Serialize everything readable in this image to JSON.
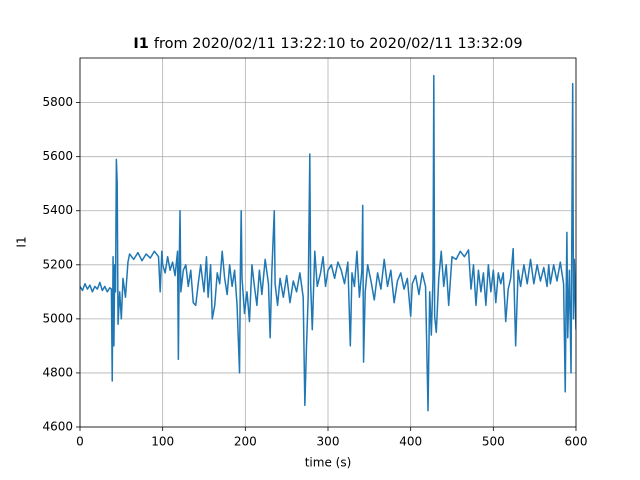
{
  "chart_data": {
    "type": "line",
    "title_variable": "I1",
    "title": "from 2020/02/11 13:22:10 to 2020/02/11 13:32:09",
    "x_label": "time (s)",
    "y_label": "I1",
    "xlim": [
      0,
      600
    ],
    "ylim": [
      4600,
      5965
    ],
    "xticks": [
      0,
      100,
      200,
      300,
      400,
      500,
      600
    ],
    "yticks": [
      4600,
      4800,
      5000,
      5200,
      5400,
      5600,
      5800
    ],
    "grid": true,
    "series": [
      {
        "color": "#1f77b4",
        "x": [
          0,
          3,
          6,
          9,
          12,
          15,
          18,
          21,
          24,
          27,
          30,
          33,
          36,
          38,
          39,
          40,
          41,
          42,
          43,
          44,
          45,
          46,
          48,
          50,
          52,
          55,
          58,
          60,
          65,
          70,
          75,
          80,
          85,
          90,
          95,
          97,
          99,
          100,
          103,
          106,
          109,
          112,
          115,
          118,
          119,
          120,
          121,
          122,
          125,
          128,
          131,
          134,
          137,
          140,
          143,
          146,
          150,
          153,
          155,
          158,
          160,
          163,
          166,
          169,
          172,
          175,
          178,
          181,
          184,
          187,
          190,
          193,
          194,
          195,
          196,
          199,
          202,
          205,
          208,
          211,
          214,
          217,
          220,
          224,
          228,
          230,
          232,
          235,
          236,
          239,
          242,
          246,
          250,
          254,
          258,
          262,
          266,
          270,
          272,
          274,
          276,
          278,
          279,
          281,
          284,
          287,
          291,
          294,
          297,
          300,
          304,
          308,
          312,
          316,
          320,
          324,
          327,
          329,
          332,
          335,
          338,
          341,
          342,
          343,
          345,
          348,
          352,
          356,
          360,
          364,
          368,
          372,
          376,
          380,
          384,
          388,
          392,
          396,
          400,
          402,
          406,
          410,
          414,
          418,
          421,
          423,
          425,
          427,
          428,
          429,
          431,
          434,
          437,
          440,
          443,
          446,
          450,
          455,
          460,
          465,
          470,
          473,
          476,
          479,
          482,
          485,
          488,
          491,
          494,
          497,
          500,
          503,
          506,
          509,
          512,
          515,
          518,
          521,
          524,
          527,
          530,
          533,
          537,
          541,
          545,
          549,
          553,
          557,
          561,
          565,
          567,
          569,
          573,
          577,
          581,
          585,
          587,
          588,
          589,
          590,
          592,
          594,
          596,
          597,
          598,
          600
        ],
        "values": [
          5120,
          5105,
          5130,
          5110,
          5125,
          5100,
          5120,
          5110,
          5135,
          5105,
          5120,
          5100,
          5115,
          5110,
          4770,
          5230,
          4900,
          5200,
          5100,
          5590,
          5500,
          4980,
          5100,
          5000,
          5150,
          5080,
          5210,
          5240,
          5220,
          5245,
          5215,
          5240,
          5225,
          5250,
          5230,
          5100,
          5250,
          5200,
          5170,
          5230,
          5180,
          5210,
          5160,
          5250,
          4850,
          5200,
          5400,
          5100,
          5180,
          5200,
          5120,
          5180,
          5060,
          5050,
          5130,
          5200,
          5100,
          5230,
          5080,
          5200,
          5000,
          5050,
          5170,
          5130,
          5250,
          5150,
          5090,
          5200,
          5120,
          5180,
          5050,
          4800,
          5180,
          5400,
          5150,
          5020,
          5100,
          4990,
          5200,
          5120,
          5050,
          5180,
          5090,
          5220,
          5130,
          4930,
          5170,
          5400,
          5130,
          5050,
          5150,
          5080,
          5160,
          5060,
          5140,
          5100,
          5170,
          5080,
          4680,
          4900,
          5080,
          5610,
          5130,
          4960,
          5250,
          5120,
          5170,
          5230,
          5120,
          5180,
          5200,
          5150,
          5210,
          5180,
          5130,
          5210,
          4900,
          5170,
          5120,
          5250,
          5080,
          5180,
          5420,
          4840,
          5100,
          5200,
          5140,
          5070,
          5170,
          5110,
          5220,
          5120,
          5180,
          5060,
          5140,
          5170,
          5110,
          5150,
          5010,
          5130,
          5160,
          5090,
          5170,
          5120,
          4660,
          5100,
          4940,
          5150,
          5900,
          5010,
          4950,
          5150,
          5250,
          5120,
          5200,
          5050,
          5230,
          5220,
          5250,
          5230,
          5255,
          5110,
          5200,
          5050,
          5180,
          5100,
          5170,
          5050,
          5200,
          5100,
          5180,
          5060,
          5170,
          5130,
          5170,
          4990,
          5110,
          5150,
          5260,
          4900,
          5180,
          5120,
          5200,
          5130,
          5220,
          5130,
          5200,
          5140,
          5190,
          5120,
          5200,
          5130,
          5200,
          5140,
          5210,
          5130,
          4730,
          5060,
          5320,
          4930,
          5180,
          4800,
          5870,
          5000,
          5220,
          4960
        ]
      }
    ]
  }
}
